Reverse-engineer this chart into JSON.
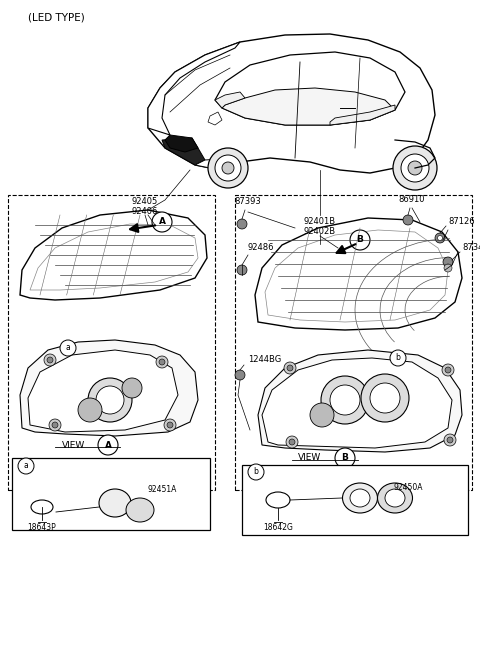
{
  "title": "(LED TYPE)",
  "bg": "#ffffff",
  "fg": "#000000",
  "fig_w": 4.8,
  "fig_h": 6.64,
  "dpi": 100,
  "xlim": [
    0,
    480
  ],
  "ylim": [
    0,
    664
  ]
}
